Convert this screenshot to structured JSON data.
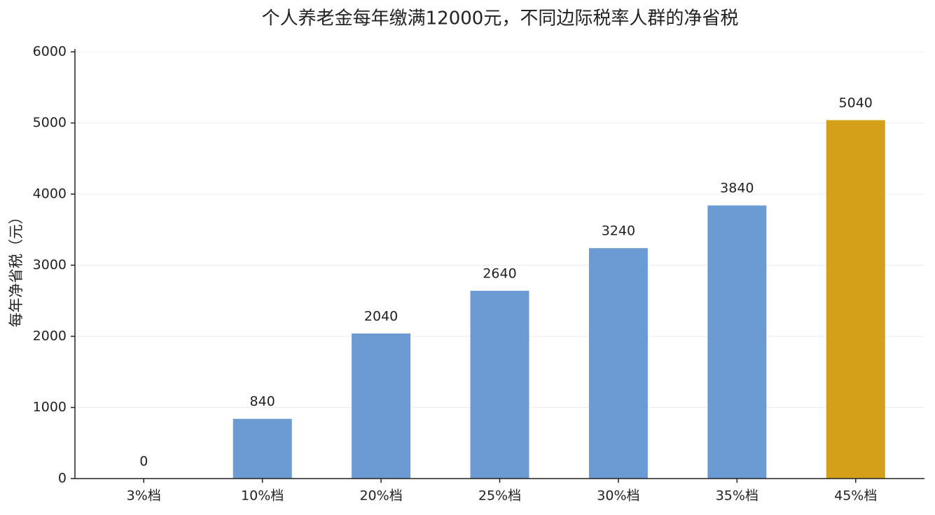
{
  "chart_data": {
    "type": "bar",
    "title": "个人养老金每年缴满12000元，不同边际税率人群的净省税",
    "y_label": "每年净省税（元）",
    "categories": [
      "3%档",
      "10%档",
      "20%档",
      "25%档",
      "30%档",
      "35%档",
      "45%档"
    ],
    "values": [
      0,
      840,
      2040,
      2640,
      3240,
      3840,
      5040
    ],
    "colors": [
      "#6b9bd2",
      "#6b9bd2",
      "#6b9bd2",
      "#6b9bd2",
      "#6b9bd2",
      "#6b9bd2",
      "#d4a01a"
    ],
    "ylim": [
      0,
      6000
    ],
    "yticks": [
      0,
      1000,
      2000,
      3000,
      4000,
      5000,
      6000
    ],
    "grid": true
  }
}
